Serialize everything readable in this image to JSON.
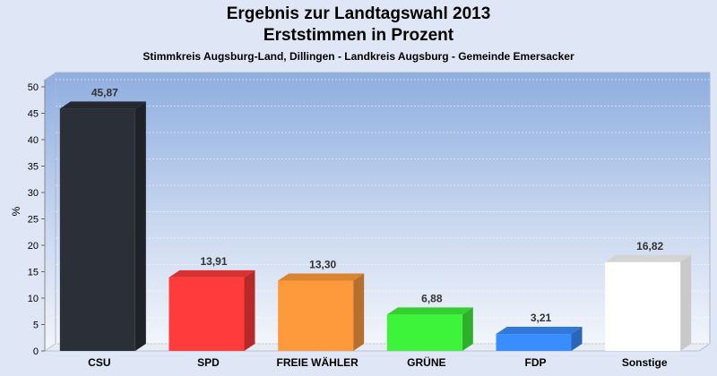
{
  "chart_data": {
    "type": "bar",
    "title": "Ergebnis zur Landtagswahl 2013",
    "title2": "Erststimmen in Prozent",
    "subtitle": "Stimmkreis Augsburg-Land, Dillingen - Landkreis Augsburg - Gemeinde Emersacker",
    "ylabel": "%",
    "ylim": [
      0,
      50
    ],
    "yticks": [
      0,
      5,
      10,
      15,
      20,
      25,
      30,
      35,
      40,
      45,
      50
    ],
    "grid": true,
    "categories": [
      "CSU",
      "SPD",
      "FREIE WÄHLER",
      "GRÜNE",
      "FDP",
      "Sonstige"
    ],
    "values": [
      45.87,
      13.91,
      13.3,
      6.88,
      3.21,
      16.82
    ],
    "value_labels": [
      "45,87",
      "13,91",
      "13,30",
      "6,88",
      "3,21",
      "16,82"
    ],
    "colors": [
      "#2b2f38",
      "#ff3b3b",
      "#ff9a3c",
      "#3ef43a",
      "#3a8dff",
      "#ffffff"
    ]
  }
}
